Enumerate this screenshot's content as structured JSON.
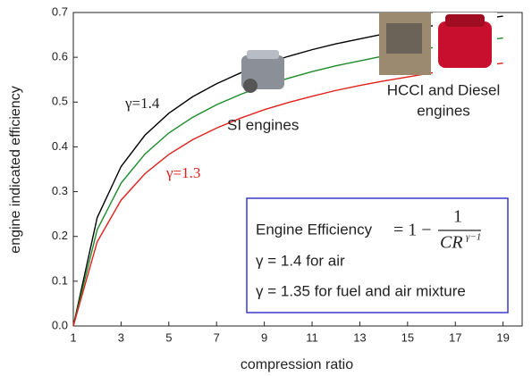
{
  "chart_data": {
    "type": "line",
    "x_label": "compression ratio",
    "y_label": "engine indicated efficiency",
    "x": [
      1,
      2,
      3,
      4,
      5,
      6,
      7,
      8,
      9,
      10,
      11,
      12,
      13,
      14,
      15,
      16,
      17,
      18,
      19
    ],
    "series": [
      {
        "color": "#000000",
        "values": [
          0,
          0.242,
          0.356,
          0.426,
          0.475,
          0.512,
          0.541,
          0.565,
          0.585,
          0.602,
          0.617,
          0.63,
          0.641,
          0.652,
          0.661,
          0.67,
          0.678,
          0.685,
          0.692
        ]
      },
      {
        "color": "#1a8a2a",
        "values": [
          0,
          0.215,
          0.319,
          0.384,
          0.431,
          0.466,
          0.494,
          0.517,
          0.537,
          0.553,
          0.568,
          0.581,
          0.592,
          0.603,
          0.612,
          0.621,
          0.629,
          0.636,
          0.643
        ]
      },
      {
        "color": "#e0201a",
        "values": [
          0,
          0.188,
          0.281,
          0.34,
          0.383,
          0.416,
          0.442,
          0.464,
          0.483,
          0.499,
          0.513,
          0.526,
          0.537,
          0.547,
          0.556,
          0.565,
          0.573,
          0.58,
          0.587
        ]
      }
    ],
    "xlim": [
      1,
      19.8
    ],
    "xticks": [
      1,
      3,
      5,
      7,
      9,
      11,
      13,
      15,
      17,
      19
    ],
    "ylim": [
      0,
      0.7
    ],
    "yticks": [
      {
        "value": 0,
        "label": "0.0"
      },
      0.1,
      0.2,
      0.3,
      0.4,
      0.5,
      0.6,
      0.7
    ],
    "annotations": {
      "gamma_high": "γ=1.4",
      "gamma_low": "γ=1.3",
      "si": "SI engines",
      "hcci_1": "HCCI and Diesel",
      "hcci_2": "engines"
    },
    "formula_box": {
      "lhs": "Engine Efficiency",
      "eq": "= 1 −",
      "num": "1",
      "den": "CR",
      "exp": "γ−1",
      "line2": "γ = 1.4 for air",
      "line3": "γ = 1.35 for fuel and air mixture"
    }
  }
}
